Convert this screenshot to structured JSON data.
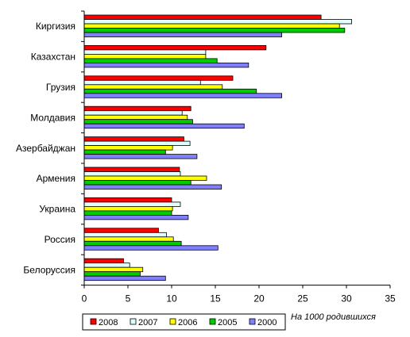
{
  "chart_data": {
    "type": "bar",
    "orientation": "horizontal",
    "categories": [
      "Киргизия",
      "Казахстан",
      "Грузия",
      "Молдавия",
      "Азербайджан",
      "Армения",
      "Украина",
      "Россия",
      "Белоруссия"
    ],
    "series": [
      {
        "name": "2008",
        "color": "#ff0000",
        "values": [
          27.1,
          20.8,
          17.0,
          12.2,
          11.4,
          10.9,
          10.0,
          8.5,
          4.5
        ]
      },
      {
        "name": "2007",
        "color": "#e0ffff",
        "values": [
          30.6,
          13.9,
          13.3,
          11.2,
          12.1,
          11.0,
          11.0,
          9.4,
          5.2
        ]
      },
      {
        "name": "2006",
        "color": "#ffff00",
        "values": [
          29.2,
          13.9,
          15.8,
          11.8,
          10.1,
          14.0,
          10.1,
          10.2,
          6.7
        ]
      },
      {
        "name": "2005",
        "color": "#00cc00",
        "values": [
          29.8,
          15.2,
          19.7,
          12.4,
          9.3,
          12.2,
          10.0,
          11.1,
          6.4
        ]
      },
      {
        "name": "2000",
        "color": "#8080ff",
        "values": [
          22.6,
          18.8,
          22.6,
          18.3,
          12.9,
          15.7,
          11.9,
          15.3,
          9.3
        ]
      }
    ],
    "xlim": [
      0,
      35
    ],
    "xticks": [
      "0",
      "5",
      "10",
      "15",
      "20",
      "25",
      "30",
      "35"
    ],
    "grid": false,
    "legend_placement": "bottom",
    "note": "На 1000 родившихся"
  }
}
